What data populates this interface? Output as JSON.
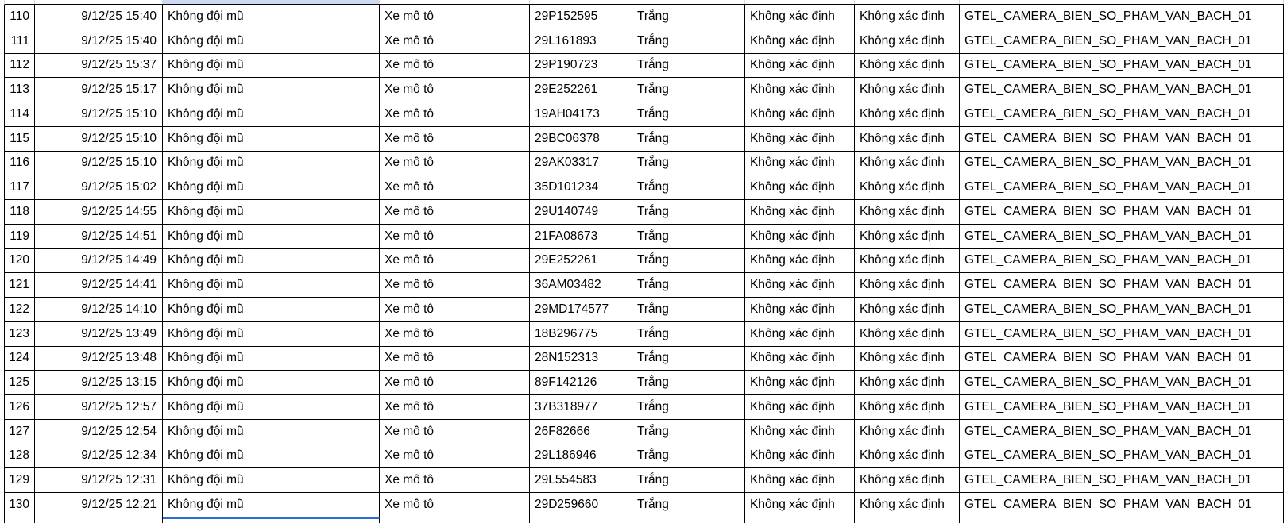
{
  "table": {
    "field_names": [
      "row_number",
      "timestamp",
      "violation_type",
      "vehicle_type",
      "license_plate",
      "vehicle_color",
      "attribute_1",
      "attribute_2",
      "camera_name"
    ],
    "rows": [
      [
        "110",
        "9/12/25 15:40",
        "Không đội mũ",
        "Xe mô tô",
        "29P152595",
        "Trắng",
        "Không xác định",
        "Không xác định",
        "GTEL_CAMERA_BIEN_SO_PHAM_VAN_BACH_01"
      ],
      [
        "111",
        "9/12/25 15:40",
        "Không đội mũ",
        "Xe mô tô",
        "29L161893",
        "Trắng",
        "Không xác định",
        "Không xác định",
        "GTEL_CAMERA_BIEN_SO_PHAM_VAN_BACH_01"
      ],
      [
        "112",
        "9/12/25 15:37",
        "Không đội mũ",
        "Xe mô tô",
        "29P190723",
        "Trắng",
        "Không xác định",
        "Không xác định",
        "GTEL_CAMERA_BIEN_SO_PHAM_VAN_BACH_01"
      ],
      [
        "113",
        "9/12/25 15:17",
        "Không đội mũ",
        "Xe mô tô",
        "29E252261",
        "Trắng",
        "Không xác định",
        "Không xác định",
        "GTEL_CAMERA_BIEN_SO_PHAM_VAN_BACH_01"
      ],
      [
        "114",
        "9/12/25 15:10",
        "Không đội mũ",
        "Xe mô tô",
        "19AH04173",
        "Trắng",
        "Không xác định",
        "Không xác định",
        "GTEL_CAMERA_BIEN_SO_PHAM_VAN_BACH_01"
      ],
      [
        "115",
        "9/12/25 15:10",
        "Không đội mũ",
        "Xe mô tô",
        "29BC06378",
        "Trắng",
        "Không xác định",
        "Không xác định",
        "GTEL_CAMERA_BIEN_SO_PHAM_VAN_BACH_01"
      ],
      [
        "116",
        "9/12/25 15:10",
        "Không đội mũ",
        "Xe mô tô",
        "29AK03317",
        "Trắng",
        "Không xác định",
        "Không xác định",
        "GTEL_CAMERA_BIEN_SO_PHAM_VAN_BACH_01"
      ],
      [
        "117",
        "9/12/25 15:02",
        "Không đội mũ",
        "Xe mô tô",
        "35D101234",
        "Trắng",
        "Không xác định",
        "Không xác định",
        "GTEL_CAMERA_BIEN_SO_PHAM_VAN_BACH_01"
      ],
      [
        "118",
        "9/12/25 14:55",
        "Không đội mũ",
        "Xe mô tô",
        "29U140749",
        "Trắng",
        "Không xác định",
        "Không xác định",
        "GTEL_CAMERA_BIEN_SO_PHAM_VAN_BACH_01"
      ],
      [
        "119",
        "9/12/25 14:51",
        "Không đội mũ",
        "Xe mô tô",
        "21FA08673",
        "Trắng",
        "Không xác định",
        "Không xác định",
        "GTEL_CAMERA_BIEN_SO_PHAM_VAN_BACH_01"
      ],
      [
        "120",
        "9/12/25 14:49",
        "Không đội mũ",
        "Xe mô tô",
        "29E252261",
        "Trắng",
        "Không xác định",
        "Không xác định",
        "GTEL_CAMERA_BIEN_SO_PHAM_VAN_BACH_01"
      ],
      [
        "121",
        "9/12/25 14:41",
        "Không đội mũ",
        "Xe mô tô",
        "36AM03482",
        "Trắng",
        "Không xác định",
        "Không xác định",
        "GTEL_CAMERA_BIEN_SO_PHAM_VAN_BACH_01"
      ],
      [
        "122",
        "9/12/25 14:10",
        "Không đội mũ",
        "Xe mô tô",
        "29MD174577",
        "Trắng",
        "Không xác định",
        "Không xác định",
        "GTEL_CAMERA_BIEN_SO_PHAM_VAN_BACH_01"
      ],
      [
        "123",
        "9/12/25 13:49",
        "Không đội mũ",
        "Xe mô tô",
        "18B296775",
        "Trắng",
        "Không xác định",
        "Không xác định",
        "GTEL_CAMERA_BIEN_SO_PHAM_VAN_BACH_01"
      ],
      [
        "124",
        "9/12/25 13:48",
        "Không đội mũ",
        "Xe mô tô",
        "28N152313",
        "Trắng",
        "Không xác định",
        "Không xác định",
        "GTEL_CAMERA_BIEN_SO_PHAM_VAN_BACH_01"
      ],
      [
        "125",
        "9/12/25 13:15",
        "Không đội mũ",
        "Xe mô tô",
        "89F142126",
        "Trắng",
        "Không xác định",
        "Không xác định",
        "GTEL_CAMERA_BIEN_SO_PHAM_VAN_BACH_01"
      ],
      [
        "126",
        "9/12/25 12:57",
        "Không đội mũ",
        "Xe mô tô",
        "37B318977",
        "Trắng",
        "Không xác định",
        "Không xác định",
        "GTEL_CAMERA_BIEN_SO_PHAM_VAN_BACH_01"
      ],
      [
        "127",
        "9/12/25 12:54",
        "Không đội mũ",
        "Xe mô tô",
        "26F82666",
        "Trắng",
        "Không xác định",
        "Không xác định",
        "GTEL_CAMERA_BIEN_SO_PHAM_VAN_BACH_01"
      ],
      [
        "128",
        "9/12/25 12:34",
        "Không đội mũ",
        "Xe mô tô",
        "29L186946",
        "Trắng",
        "Không xác định",
        "Không xác định",
        "GTEL_CAMERA_BIEN_SO_PHAM_VAN_BACH_01"
      ],
      [
        "129",
        "9/12/25 12:31",
        "Không đội mũ",
        "Xe mô tô",
        "29L554583",
        "Trắng",
        "Không xác định",
        "Không xác định",
        "GTEL_CAMERA_BIEN_SO_PHAM_VAN_BACH_01"
      ],
      [
        "130",
        "9/12/25 12:21",
        "Không đội mũ",
        "Xe mô tô",
        "29D259660",
        "Trắng",
        "Không xác định",
        "Không xác định",
        "GTEL_CAMERA_BIEN_SO_PHAM_VAN_BACH_01"
      ]
    ]
  },
  "colors": {
    "selection_fill": "#cbd9f1",
    "selection_border": "#2b6cd4",
    "cell_border": "#000000",
    "sliver_gridline": "#d9d9d9"
  }
}
